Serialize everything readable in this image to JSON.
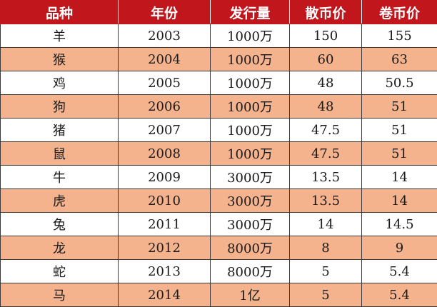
{
  "headers": [
    "品种",
    "年份",
    "发行量",
    "散币价",
    "卷币价"
  ],
  "rows": [
    [
      "羊",
      "2003",
      "1000万",
      "150",
      "155"
    ],
    [
      "猴",
      "2004",
      "1000万",
      "60",
      "63"
    ],
    [
      "鸡",
      "2005",
      "1000万",
      "48",
      "50.5"
    ],
    [
      "狗",
      "2006",
      "1000万",
      "48",
      "51"
    ],
    [
      "猪",
      "2007",
      "1000万",
      "47.5",
      "51"
    ],
    [
      "鼠",
      "2008",
      "1000万",
      "47.5",
      "51"
    ],
    [
      "牛",
      "2009",
      "3000万",
      "13.5",
      "14"
    ],
    [
      "虎",
      "2010",
      "3000万",
      "13.5",
      "14"
    ],
    [
      "兔",
      "2011",
      "3000万",
      "14",
      "14.5"
    ],
    [
      "龙",
      "2012",
      "8000万",
      "8",
      "9"
    ],
    [
      "蛇",
      "2013",
      "8000万",
      "5",
      "5.4"
    ],
    [
      "马",
      "2014",
      "1亿",
      "5",
      "5.4"
    ]
  ],
  "colors": {
    "header_bg": "#c0161c",
    "header_text": "#ffffff",
    "stripe_row": "#f4b28d",
    "plain_row": "#ffffff"
  }
}
